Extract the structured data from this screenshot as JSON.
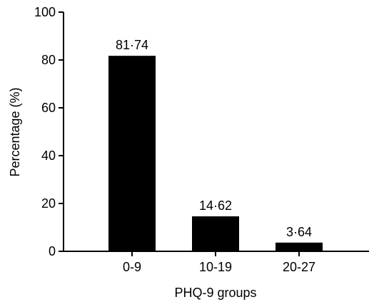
{
  "chart_data": {
    "type": "bar",
    "categories": [
      "0-9",
      "10-19",
      "20-27"
    ],
    "values": [
      81.74,
      14.62,
      3.64
    ],
    "value_labels": [
      "81·74",
      "14·62",
      "3·64"
    ],
    "title": "",
    "xlabel": "PHQ-9 groups",
    "ylabel": "Percentage (%)",
    "ylim": [
      0,
      100
    ],
    "yticks": [
      0,
      20,
      40,
      60,
      80,
      100
    ],
    "ytick_labels": [
      "0",
      "20",
      "40",
      "60",
      "80",
      "100"
    ],
    "grid": false,
    "legend": "none",
    "bar_color": "#000000"
  }
}
